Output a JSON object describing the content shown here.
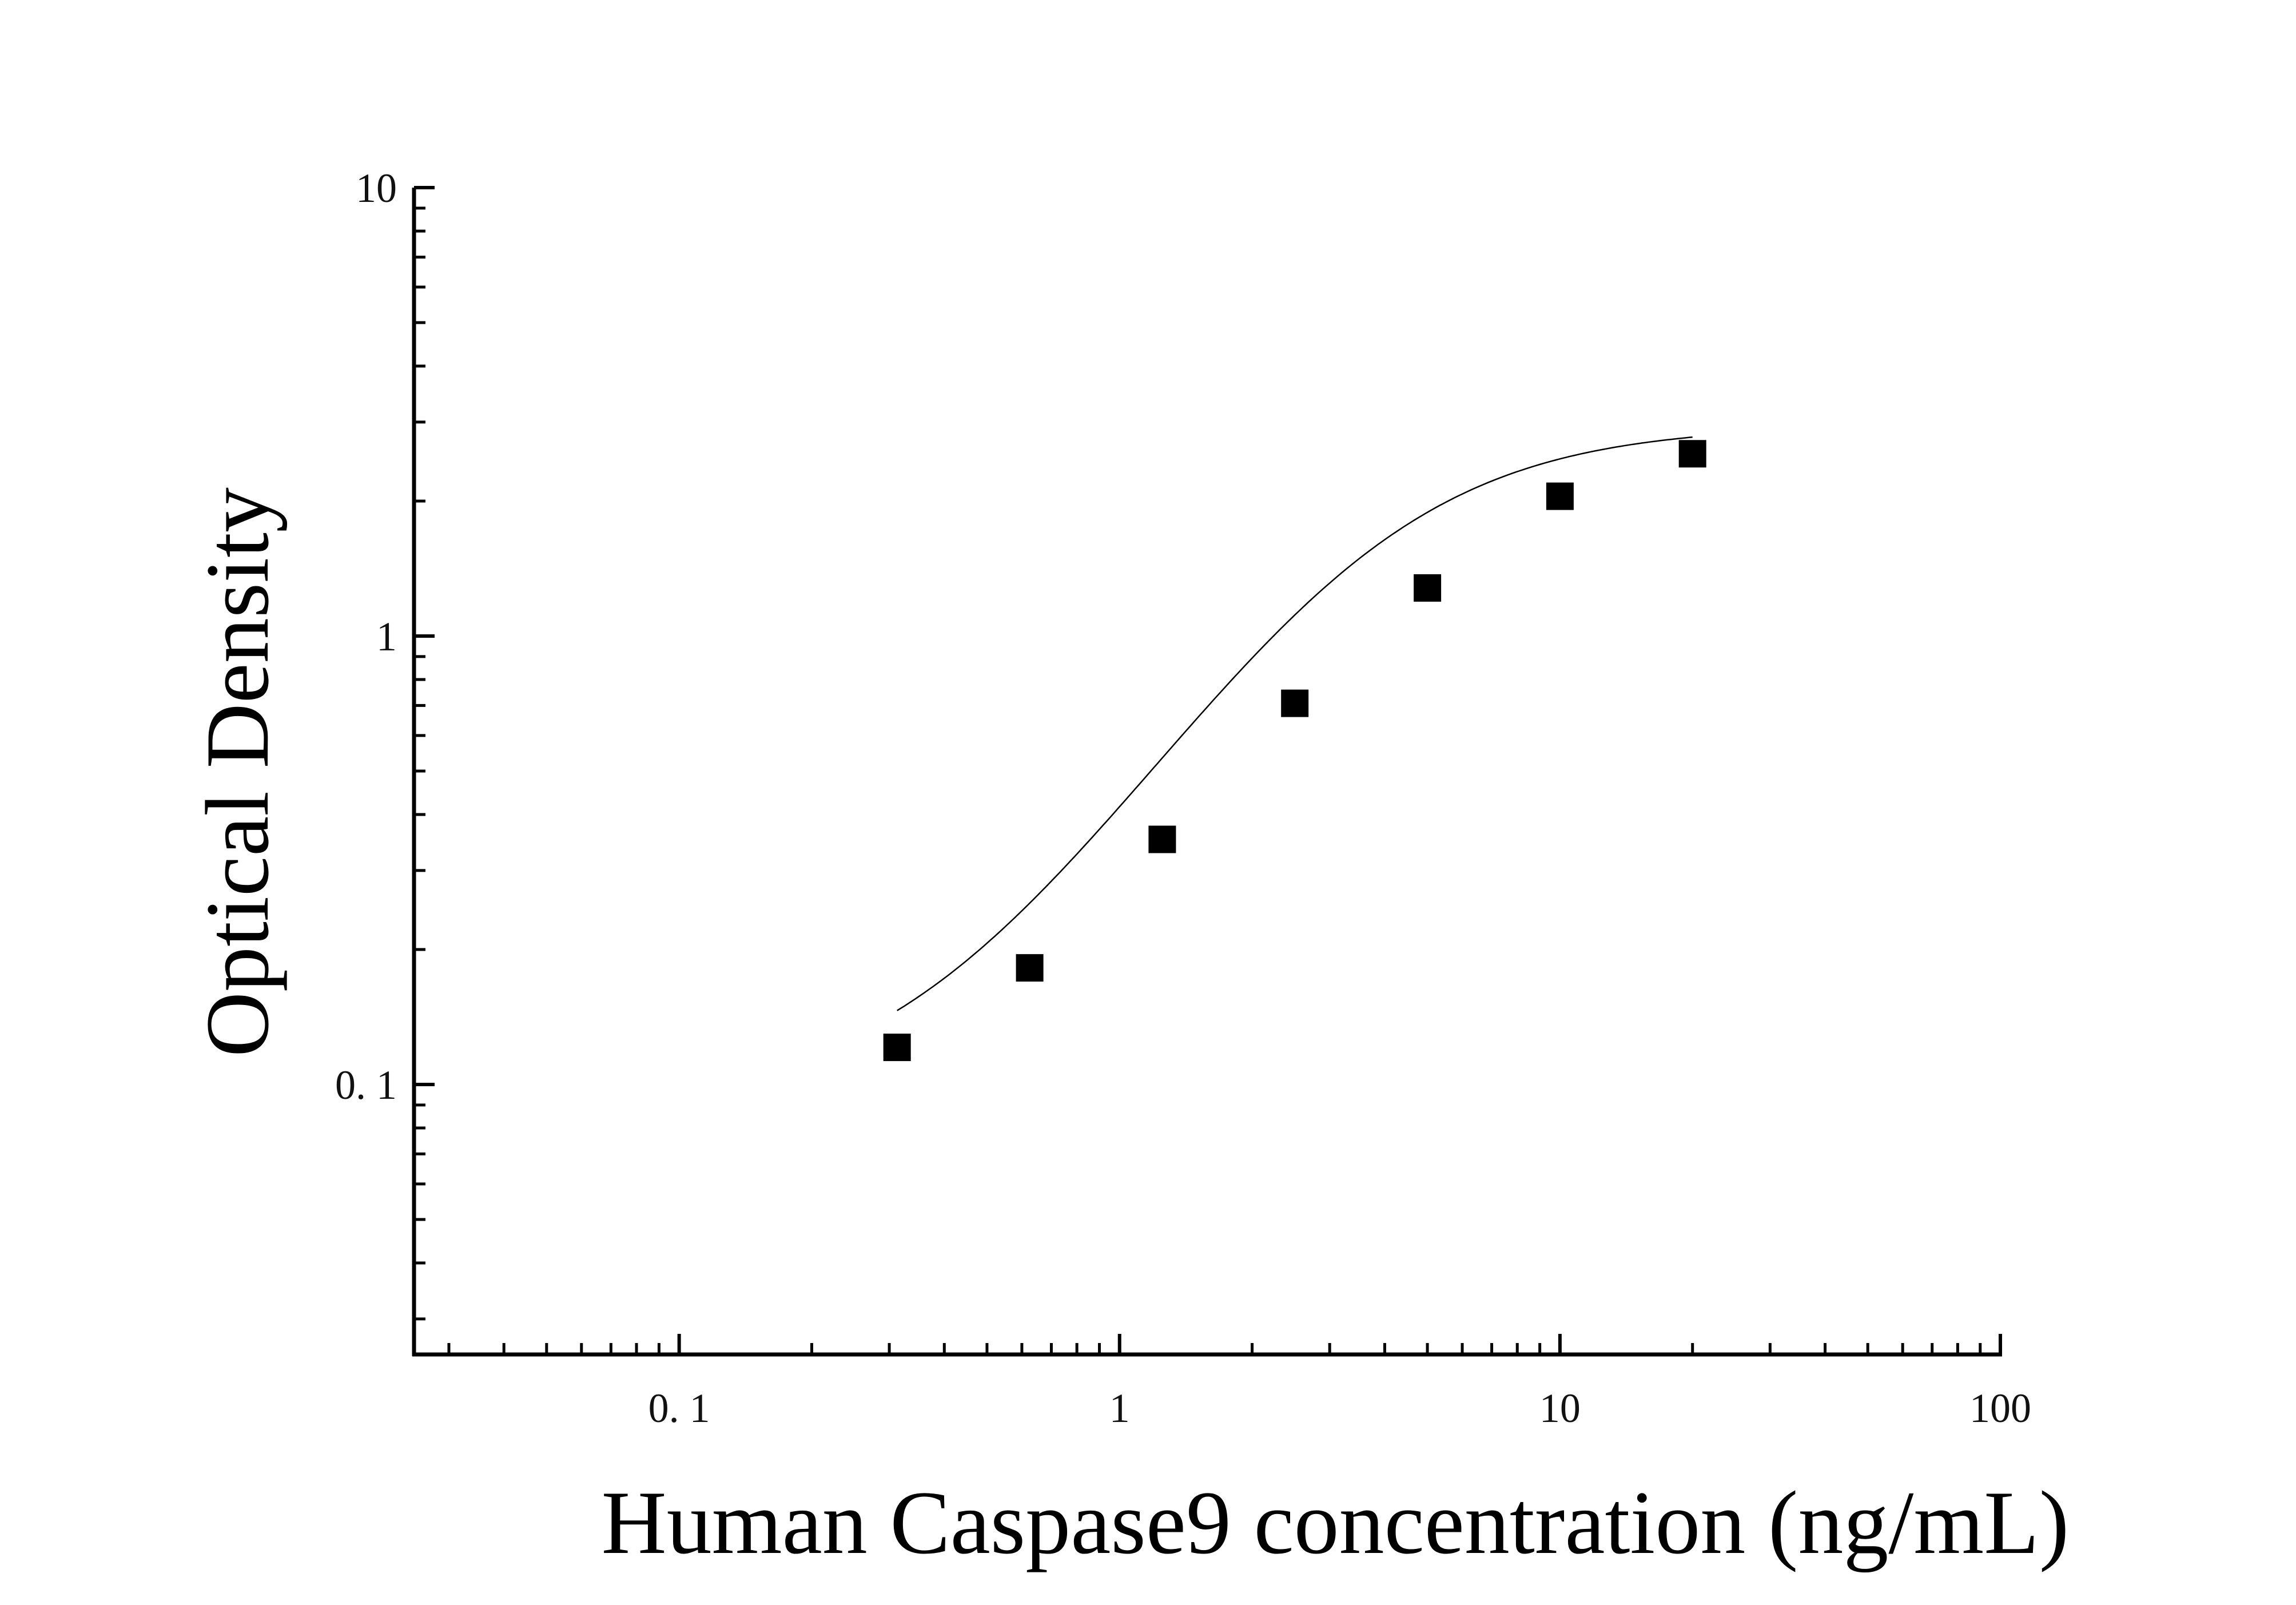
{
  "chart_data": {
    "type": "scatter",
    "title": "",
    "xlabel": "Human Caspase9 concentration (ng/mL)",
    "ylabel": "Optical Density",
    "x_scale": "log",
    "y_scale": "log",
    "xlim": [
      0.025,
      100
    ],
    "ylim": [
      0.025,
      10
    ],
    "x_ticks": [
      {
        "value": 0.1,
        "label": "0. 1"
      },
      {
        "value": 1,
        "label": "1"
      },
      {
        "value": 10,
        "label": "10"
      },
      {
        "value": 100,
        "label": "100"
      }
    ],
    "y_ticks": [
      {
        "value": 0.1,
        "label": "0. 1"
      },
      {
        "value": 1,
        "label": "1"
      },
      {
        "value": 10,
        "label": "10"
      }
    ],
    "grid": false,
    "legend": "none",
    "series": [
      {
        "marker": "square",
        "color": "#000000",
        "x": [
          0.3125,
          0.625,
          1.25,
          2.5,
          5,
          10,
          20
        ],
        "y": [
          0.121,
          0.182,
          0.352,
          0.708,
          1.28,
          2.05,
          2.55
        ]
      }
    ],
    "fit": {
      "type": "4PL",
      "color": "#000000",
      "x_range": [
        0.3125,
        20
      ],
      "params": {
        "A": 0.09,
        "B": 1.6,
        "C": 3.6,
        "D": 2.95
      }
    }
  }
}
